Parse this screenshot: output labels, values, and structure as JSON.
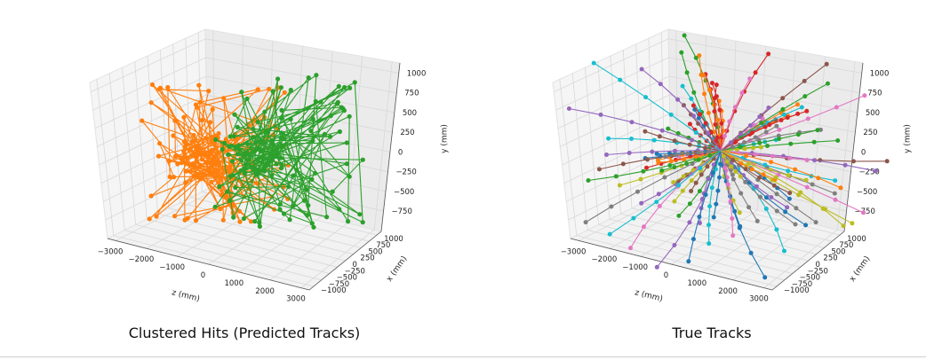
{
  "chart_data": [
    {
      "type": "scatter",
      "subtype": "3d-line-scatter",
      "caption": "Clustered Hits (Predicted Tracks)",
      "xlabel": "z (mm)",
      "ylabel": "x (mm)",
      "zlabel": "y (mm)",
      "z_ticks": [
        "−3000",
        "−2000",
        "−1000",
        "0",
        "1000",
        "2000",
        "3000"
      ],
      "x_ticks": [
        "−1000",
        "−750",
        "−500",
        "−250",
        "0",
        "250",
        "500",
        "750",
        "1000"
      ],
      "y_ticks": [
        "−750",
        "−500",
        "−250",
        "0",
        "250",
        "500",
        "750",
        "1000"
      ],
      "grid": true,
      "series": [
        {
          "color": "#ff7f0e",
          "track_count": 1,
          "hits_estimated": 160
        },
        {
          "color": "#2ca02c",
          "track_count": 1,
          "hits_estimated": 140
        }
      ]
    },
    {
      "type": "scatter",
      "subtype": "3d-line-scatter",
      "caption": "True Tracks",
      "xlabel": "z (mm)",
      "ylabel": "x (mm)",
      "zlabel": "y (mm)",
      "z_ticks": [
        "−3000",
        "−2000",
        "−1000",
        "0",
        "1000",
        "2000",
        "3000"
      ],
      "x_ticks": [
        "−1000",
        "−750",
        "−500",
        "−250",
        "0",
        "250",
        "500",
        "750",
        "1000"
      ],
      "y_ticks": [
        "−750",
        "−500",
        "−250",
        "0",
        "250",
        "500",
        "750",
        "1000"
      ],
      "grid": true,
      "series_colors": [
        "#1f77b4",
        "#ff7f0e",
        "#2ca02c",
        "#d62728",
        "#9467bd",
        "#8c564b",
        "#e377c2",
        "#7f7f7f",
        "#bcbd22",
        "#17becf"
      ],
      "track_count_estimated": 90,
      "hits_per_track_estimated": 5
    }
  ]
}
